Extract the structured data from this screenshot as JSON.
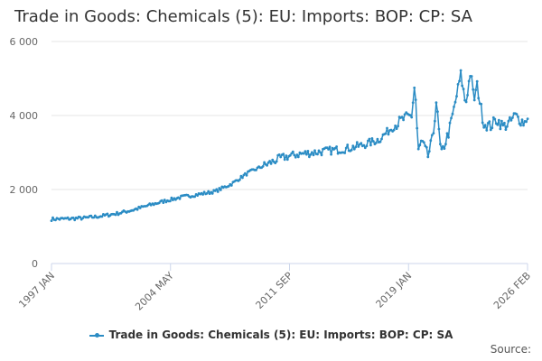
{
  "chart_data": {
    "type": "line",
    "title": "Trade in Goods: Chemicals (5): EU: Imports: BOP: CP: SA",
    "xlabel": "",
    "ylabel": "",
    "ylim": [
      0,
      6000
    ],
    "y_ticks": [
      0,
      2000,
      4000,
      6000
    ],
    "y_tick_labels": [
      "0",
      "2 000",
      "4 000",
      "6 000"
    ],
    "x_tick_labels": [
      "1997 JAN",
      "2004 MAY",
      "2011 SEP",
      "2019 JAN",
      "2026 FEB"
    ],
    "x_range": [
      "1997 JAN",
      "2026 FEB"
    ],
    "legend_position": "bottom-center",
    "grid": true,
    "series": [
      {
        "name": "Trade in Goods: Chemicals (5): EU: Imports: BOP: CP: SA",
        "color": "#2b8cc4",
        "x": [
          1997.0,
          1998.0,
          1999.0,
          2000.0,
          2001.0,
          2002.0,
          2003.0,
          2004.0,
          2005.0,
          2006.0,
          2007.0,
          2008.0,
          2009.0,
          2010.0,
          2011.0,
          2012.0,
          2013.0,
          2014.0,
          2015.0,
          2016.0,
          2017.0,
          2018.0,
          2018.5,
          2019.0,
          2019.2,
          2019.4,
          2019.6,
          2019.8,
          2020.0,
          2020.3,
          2020.5,
          2020.8,
          2021.0,
          2021.3,
          2021.6,
          2022.0,
          2022.3,
          2022.6,
          2022.8,
          2023.0,
          2023.4,
          2023.8,
          2024.2,
          2024.6,
          2025.0,
          2025.3,
          2025.6,
          2025.9,
          2026.08
        ],
        "values": [
          1200,
          1210,
          1230,
          1280,
          1350,
          1450,
          1580,
          1700,
          1800,
          1870,
          1950,
          2150,
          2450,
          2650,
          2850,
          2950,
          3000,
          3050,
          3100,
          3200,
          3350,
          3750,
          3900,
          4000,
          4900,
          3000,
          3300,
          3100,
          2900,
          3400,
          4400,
          2900,
          3200,
          3600,
          4200,
          5100,
          4300,
          5200,
          4400,
          4800,
          3800,
          3700,
          3900,
          3700,
          3800,
          4000,
          3900,
          3800,
          4000
        ]
      }
    ]
  },
  "legend": {
    "label": "Trade in Goods: Chemicals (5): EU: Imports: BOP: CP: SA"
  },
  "credits": {
    "text": "Source:"
  }
}
